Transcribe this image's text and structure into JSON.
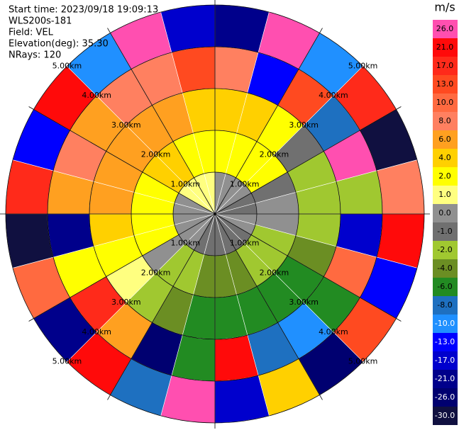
{
  "chart_data": {
    "type": "ppi",
    "header": [
      "Start time: 2023/09/18 19:09:13",
      "WLS200s-181",
      "Field: VEL",
      "Elevation(deg): 35.30",
      "NRays: 120"
    ],
    "range_ring_labels": [
      "1.00km",
      "2.00km",
      "3.00km",
      "4.00km",
      "5.00km"
    ],
    "range_edges_km": [
      0,
      1,
      2,
      3,
      4,
      5
    ],
    "azimuths_deg": [
      0,
      15,
      30,
      45,
      60,
      75,
      90,
      105,
      120,
      135,
      150,
      165,
      180,
      195,
      210,
      225,
      240,
      255,
      270,
      285,
      300,
      315,
      330,
      345
    ],
    "series": [
      {
        "values": [
          0,
          0,
          0,
          0,
          -1,
          -1,
          0,
          0,
          -1,
          -1,
          -1,
          -1,
          -1,
          -1,
          0,
          0,
          0,
          0,
          0,
          0,
          1,
          1,
          1,
          1
        ]
      },
      {
        "values": [
          2,
          2,
          2,
          2,
          -1,
          0,
          0,
          -2,
          -2,
          -2,
          -4,
          -4,
          -4,
          -2,
          -2,
          0,
          2,
          2,
          2,
          2,
          4,
          4,
          2,
          2
        ]
      },
      {
        "values": [
          4,
          4,
          2,
          -1,
          -2,
          -2,
          -2,
          -4,
          -6,
          -6,
          -6,
          -6,
          -6,
          -4,
          -2,
          1,
          2,
          4,
          6,
          6,
          6,
          6,
          6,
          4
        ]
      },
      {
        "values": [
          8,
          -13,
          13,
          -8,
          26,
          -2,
          -17,
          10,
          -6,
          -10,
          -8,
          21,
          -6,
          -26,
          6,
          17,
          2,
          -21,
          6,
          8,
          6,
          8,
          8,
          13
        ]
      },
      {
        "values": [
          -21,
          26,
          -10,
          17,
          -30,
          8,
          21,
          -13,
          13,
          -26,
          4,
          -17,
          26,
          -8,
          21,
          -21,
          10,
          -30,
          17,
          -13,
          21,
          -10,
          26,
          -17
        ]
      }
    ],
    "colorbar": {
      "label": "m/s",
      "ticks": [
        {
          "value": 26,
          "label": "26.0"
        },
        {
          "value": 21,
          "label": "21.0"
        },
        {
          "value": 17,
          "label": "17.0"
        },
        {
          "value": 13,
          "label": "13.0"
        },
        {
          "value": 10,
          "label": "10.0"
        },
        {
          "value": 8,
          "label": "8.0"
        },
        {
          "value": 6,
          "label": "6.0"
        },
        {
          "value": 4,
          "label": "4.0"
        },
        {
          "value": 2,
          "label": "2.0"
        },
        {
          "value": 1,
          "label": "1.0"
        },
        {
          "value": 0,
          "label": "0.0"
        },
        {
          "value": -1,
          "label": "-1.0"
        },
        {
          "value": -2,
          "label": "-2.0"
        },
        {
          "value": -4,
          "label": "-4.0"
        },
        {
          "value": -6,
          "label": "-6.0"
        },
        {
          "value": -8,
          "label": "-8.0"
        },
        {
          "value": -10,
          "label": "-10.0"
        },
        {
          "value": -13,
          "label": "-13.0"
        },
        {
          "value": -17,
          "label": "-17.0"
        },
        {
          "value": -21,
          "label": "-21.0"
        },
        {
          "value": -26,
          "label": "-26.0"
        },
        {
          "value": -30,
          "label": "-30.0"
        }
      ],
      "colors": [
        "#ff4fb0",
        "#ff0a0a",
        "#ff2a1a",
        "#ff4a20",
        "#ff6a40",
        "#ff8060",
        "#ffa020",
        "#ffd000",
        "#ffff00",
        "#ffff80",
        "#909090",
        "#707070",
        "#a0c830",
        "#6b8e23",
        "#228b22",
        "#1e70c0",
        "#2090ff",
        "#0000ff",
        "#0000cd",
        "#00008b",
        "#000070",
        "#101040"
      ]
    }
  }
}
